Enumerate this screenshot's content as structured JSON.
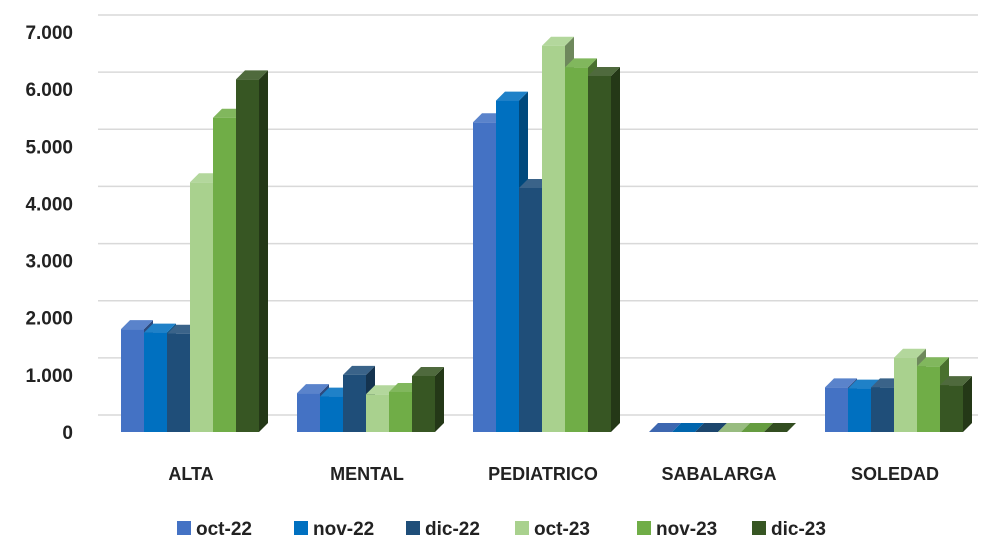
{
  "chart_data": {
    "type": "bar",
    "title": "",
    "xlabel": "",
    "ylabel": "",
    "categories": [
      "ALTA",
      "MENTAL",
      "PEDIATRICO",
      "SABALARGA",
      "SOLEDAD"
    ],
    "series": [
      {
        "name": "oct-22",
        "color": "#4472C4",
        "values": [
          1800,
          680,
          5420,
          0,
          780
        ]
      },
      {
        "name": "nov-22",
        "color": "#0070C0",
        "values": [
          1740,
          620,
          5800,
          0,
          760
        ]
      },
      {
        "name": "dic-22",
        "color": "#1F4E79",
        "values": [
          1720,
          1000,
          4270,
          0,
          780
        ]
      },
      {
        "name": "oct-23",
        "color": "#A9D18E",
        "values": [
          4370,
          660,
          6760,
          0,
          1300
        ]
      },
      {
        "name": "nov-23",
        "color": "#70AD47",
        "values": [
          5500,
          700,
          6380,
          0,
          1150
        ]
      },
      {
        "name": "dic-23",
        "color": "#375623",
        "values": [
          6170,
          980,
          6230,
          0,
          820
        ]
      }
    ],
    "yticks": [
      "0",
      "1.000",
      "2.000",
      "3.000",
      "4.000",
      "5.000",
      "6.000",
      "7.000"
    ],
    "ylim": [
      0,
      7000
    ],
    "grid": true,
    "legend_position": "bottom"
  }
}
